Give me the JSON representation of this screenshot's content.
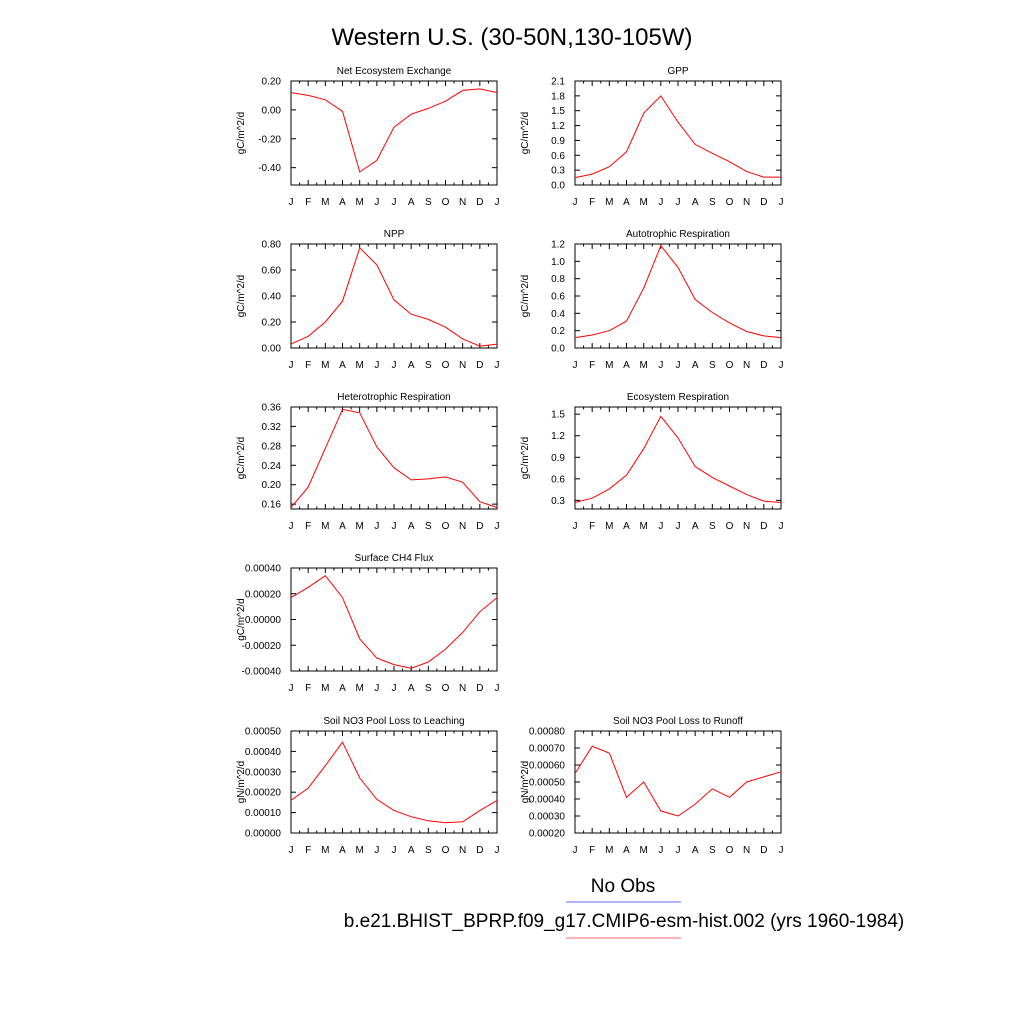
{
  "figure": {
    "title": "Western U.S. (30-50N,130-105W)",
    "legend": {
      "entries": [
        {
          "label": "No Obs",
          "color": "#6b6bff"
        },
        {
          "label": "b.e21.BHIST_BPRP.f09_g17.CMIP6-esm-hist.002 (yrs 1960-1984)",
          "color": "#ff6b6b"
        }
      ]
    }
  },
  "chart_data": [
    {
      "type": "line",
      "title": "Net Ecosystem Exchange",
      "ylabel": "gC/m^2/d",
      "x": [
        "J",
        "F",
        "M",
        "A",
        "M",
        "J",
        "J",
        "A",
        "S",
        "O",
        "N",
        "D",
        "J"
      ],
      "ylim": [
        -0.52,
        0.2
      ],
      "yticks": [
        0.2,
        0.0,
        -0.2,
        -0.4
      ],
      "yticklabels": [
        "0.20",
        "0.00",
        "-0.20",
        "-0.40"
      ],
      "series": [
        {
          "color": "#ff0000",
          "values": [
            0.12,
            0.1,
            0.07,
            -0.01,
            -0.43,
            -0.35,
            -0.12,
            -0.03,
            0.01,
            0.06,
            0.135,
            0.145,
            0.12
          ]
        }
      ]
    },
    {
      "type": "line",
      "title": "GPP",
      "ylabel": "gC/m^2/d",
      "x": [
        "J",
        "F",
        "M",
        "A",
        "M",
        "J",
        "J",
        "A",
        "S",
        "O",
        "N",
        "D",
        "J"
      ],
      "ylim": [
        0.0,
        2.1
      ],
      "yticks": [
        2.1,
        1.8,
        1.5,
        1.2,
        0.9,
        0.6,
        0.3,
        0.0
      ],
      "yticklabels": [
        "2.1",
        "1.8",
        "1.5",
        "1.2",
        "0.9",
        "0.6",
        "0.3",
        "0.0"
      ],
      "series": [
        {
          "color": "#ff0000",
          "values": [
            0.15,
            0.22,
            0.37,
            0.67,
            1.45,
            1.8,
            1.27,
            0.82,
            0.64,
            0.47,
            0.27,
            0.16,
            0.16
          ]
        }
      ]
    },
    {
      "type": "line",
      "title": "NPP",
      "ylabel": "gC/m^2/d",
      "x": [
        "J",
        "F",
        "M",
        "A",
        "M",
        "J",
        "J",
        "A",
        "S",
        "O",
        "N",
        "D",
        "J"
      ],
      "ylim": [
        0.0,
        0.8
      ],
      "yticks": [
        0.8,
        0.6,
        0.4,
        0.2,
        0.0
      ],
      "yticklabels": [
        "0.80",
        "0.60",
        "0.40",
        "0.20",
        "0.00"
      ],
      "series": [
        {
          "color": "#ff0000",
          "values": [
            0.03,
            0.09,
            0.2,
            0.36,
            0.77,
            0.64,
            0.37,
            0.26,
            0.22,
            0.16,
            0.07,
            0.015,
            0.03
          ]
        }
      ]
    },
    {
      "type": "line",
      "title": "Autotrophic Respiration",
      "ylabel": "gC/m^2/d",
      "x": [
        "J",
        "F",
        "M",
        "A",
        "M",
        "J",
        "J",
        "A",
        "S",
        "O",
        "N",
        "D",
        "J"
      ],
      "ylim": [
        0.0,
        1.2
      ],
      "yticks": [
        1.2,
        1.0,
        0.8,
        0.6,
        0.4,
        0.2,
        0.0
      ],
      "yticklabels": [
        "1.2",
        "1.0",
        "0.8",
        "0.6",
        "0.4",
        "0.2",
        "0.0"
      ],
      "series": [
        {
          "color": "#ff0000",
          "values": [
            0.12,
            0.15,
            0.2,
            0.31,
            0.69,
            1.18,
            0.93,
            0.56,
            0.41,
            0.29,
            0.19,
            0.14,
            0.12
          ]
        }
      ]
    },
    {
      "type": "line",
      "title": "Heterotrophic Respiration",
      "ylabel": "gC/m^2/d",
      "x": [
        "J",
        "F",
        "M",
        "A",
        "M",
        "J",
        "J",
        "A",
        "S",
        "O",
        "N",
        "D",
        "J"
      ],
      "ylim": [
        0.15,
        0.36
      ],
      "yticks": [
        0.36,
        0.32,
        0.28,
        0.24,
        0.2,
        0.16
      ],
      "yticklabels": [
        "0.36",
        "0.32",
        "0.28",
        "0.24",
        "0.20",
        "0.16"
      ],
      "series": [
        {
          "color": "#ff0000",
          "values": [
            0.153,
            0.195,
            0.275,
            0.355,
            0.348,
            0.278,
            0.235,
            0.21,
            0.212,
            0.216,
            0.205,
            0.165,
            0.153
          ]
        }
      ]
    },
    {
      "type": "line",
      "title": "Ecosystem Respiration",
      "ylabel": "gC/m^2/d",
      "x": [
        "J",
        "F",
        "M",
        "A",
        "M",
        "J",
        "J",
        "A",
        "S",
        "O",
        "N",
        "D",
        "J"
      ],
      "ylim": [
        0.18,
        1.6
      ],
      "yticks": [
        1.5,
        1.2,
        0.9,
        0.6,
        0.3
      ],
      "yticklabels": [
        "1.5",
        "1.2",
        "0.9",
        "0.6",
        "0.3"
      ],
      "series": [
        {
          "color": "#ff0000",
          "values": [
            0.27,
            0.33,
            0.46,
            0.65,
            1.02,
            1.47,
            1.17,
            0.77,
            0.62,
            0.5,
            0.38,
            0.29,
            0.27
          ]
        }
      ]
    },
    {
      "type": "line",
      "title": "Surface CH4 Flux",
      "ylabel": "gC/m^2/d",
      "x": [
        "J",
        "F",
        "M",
        "A",
        "M",
        "J",
        "J",
        "A",
        "S",
        "O",
        "N",
        "D",
        "J"
      ],
      "ylim": [
        -0.0004,
        0.0004
      ],
      "yticks": [
        0.0004,
        0.0002,
        0.0,
        -0.0002,
        -0.0004
      ],
      "yticklabels": [
        "0.00040",
        "0.00020",
        "0.00000",
        "-0.00020",
        "-0.00040"
      ],
      "series": [
        {
          "color": "#ff0000",
          "values": [
            0.00017,
            0.00025,
            0.00034,
            0.00017,
            -0.00015,
            -0.0003,
            -0.00035,
            -0.00038,
            -0.00033,
            -0.00023,
            -0.0001,
            6e-05,
            0.00017
          ]
        }
      ]
    },
    {
      "type": "line",
      "title": "Soil NO3 Pool Loss to Leaching",
      "ylabel": "gN/m^2/d",
      "x": [
        "J",
        "F",
        "M",
        "A",
        "M",
        "J",
        "J",
        "A",
        "S",
        "O",
        "N",
        "D",
        "J"
      ],
      "ylim": [
        0.0,
        0.0005
      ],
      "yticks": [
        0.0005,
        0.0004,
        0.0003,
        0.0002,
        0.0001,
        0.0
      ],
      "yticklabels": [
        "0.00050",
        "0.00040",
        "0.00030",
        "0.00020",
        "0.00010",
        "0.00000"
      ],
      "series": [
        {
          "color": "#ff0000",
          "values": [
            0.00016,
            0.00022,
            0.00033,
            0.000445,
            0.00027,
            0.000165,
            0.00011,
            8e-05,
            6e-05,
            5e-05,
            5.5e-05,
            0.00011,
            0.00016
          ]
        }
      ]
    },
    {
      "type": "line",
      "title": "Soil NO3 Pool Loss to Runoff",
      "ylabel": "gN/m^2/d",
      "x": [
        "J",
        "F",
        "M",
        "A",
        "M",
        "J",
        "J",
        "A",
        "S",
        "O",
        "N",
        "D",
        "J"
      ],
      "ylim": [
        0.0002,
        0.0008
      ],
      "yticks": [
        0.0008,
        0.0007,
        0.0006,
        0.0005,
        0.0004,
        0.0003,
        0.0002
      ],
      "yticklabels": [
        "0.00080",
        "0.00070",
        "0.00060",
        "0.00050",
        "0.00040",
        "0.00030",
        "0.00020"
      ],
      "series": [
        {
          "color": "#ff0000",
          "values": [
            0.00055,
            0.00071,
            0.00067,
            0.00041,
            0.0005,
            0.00033,
            0.0003,
            0.00037,
            0.00046,
            0.00041,
            0.0005,
            0.00053,
            0.00056
          ]
        }
      ]
    }
  ]
}
